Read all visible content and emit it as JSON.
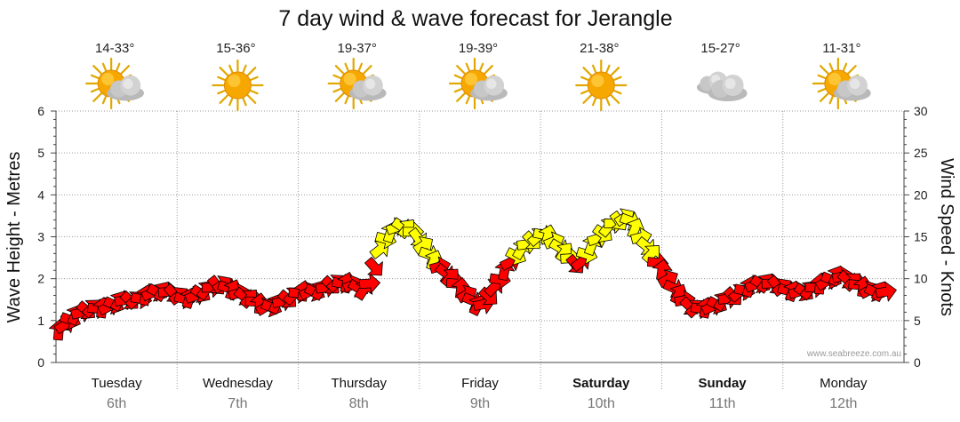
{
  "chart_data": {
    "type": "line",
    "title": "7 day wind & wave forecast for Jerangle",
    "ylabel_left": "Wave Height - Metres",
    "ylabel_right": "Wind Speed - Knots",
    "ylim_left": [
      0,
      6
    ],
    "ylim_right": [
      0,
      30
    ],
    "yticks_left": [
      "0",
      "1",
      "2",
      "3",
      "4",
      "5",
      "6"
    ],
    "yticks_right": [
      "0",
      "5",
      "10",
      "15",
      "20",
      "25",
      "30"
    ],
    "grid": true,
    "days": [
      {
        "name": "Tuesday",
        "date": "6th",
        "bold": false,
        "temp": "14-33°",
        "weather": "partly-cloudy"
      },
      {
        "name": "Wednesday",
        "date": "7th",
        "bold": false,
        "temp": "15-36°",
        "weather": "sunny"
      },
      {
        "name": "Thursday",
        "date": "8th",
        "bold": false,
        "temp": "19-37°",
        "weather": "partly-cloudy"
      },
      {
        "name": "Friday",
        "date": "9th",
        "bold": false,
        "temp": "19-39°",
        "weather": "partly-cloudy"
      },
      {
        "name": "Saturday",
        "date": "10th",
        "bold": true,
        "temp": "21-38°",
        "weather": "sunny"
      },
      {
        "name": "Sunday",
        "date": "11th",
        "bold": true,
        "temp": "15-27°",
        "weather": "cloudy"
      },
      {
        "name": "Monday",
        "date": "12th",
        "bold": false,
        "temp": "11-31°",
        "weather": "partly-cloudy"
      }
    ],
    "series": [
      {
        "name": "Wind Speed (knots)",
        "axis": "right",
        "step_hours": 6,
        "values": [
          3,
          5,
          6,
          6,
          7,
          7,
          8,
          8,
          7,
          8,
          9,
          8,
          7,
          6,
          7,
          8,
          8,
          9,
          9,
          8,
          14,
          16,
          15,
          12,
          10,
          8,
          6,
          9,
          12,
          14,
          15,
          13,
          11,
          14,
          16,
          17,
          14,
          11,
          8,
          6,
          6,
          7,
          8,
          9,
          9,
          8,
          8,
          9,
          10,
          9,
          8,
          8
        ]
      }
    ]
  },
  "footer": {
    "credit": "www.seabreeze.com.au"
  },
  "colors": {
    "strong_wind": "#ffff00",
    "light_wind": "#ff0000",
    "outline": "#000000",
    "grid": "#9a9a9a"
  }
}
